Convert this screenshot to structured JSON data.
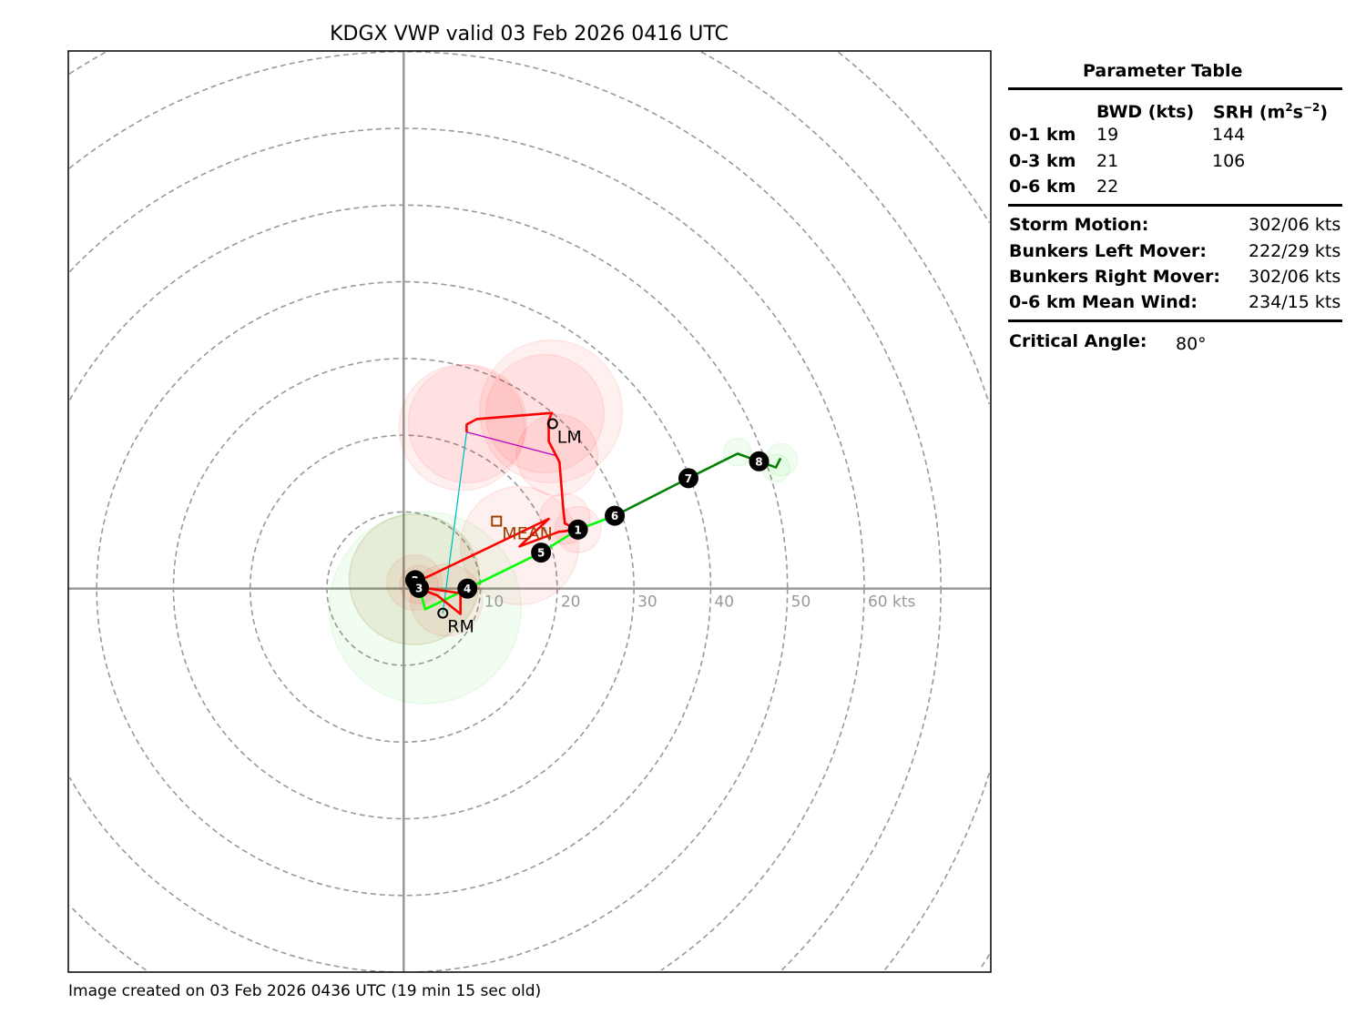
{
  "chart_data": {
    "type": "line",
    "title": "KDGX VWP valid 03 Feb 2026 0416 UTC",
    "footer": "Image created on 03 Feb 2026 0436 UTC (19 min 15 sec old)",
    "xlim": [
      -43.7,
      76.5
    ],
    "ylim": [
      -50,
      70.1
    ],
    "units": "kts",
    "rings": [
      10,
      20,
      30,
      40,
      50,
      60,
      70,
      80,
      90
    ],
    "ring_labels": [
      "10",
      "20",
      "30",
      "40",
      "50",
      "60 kts"
    ],
    "series": [
      {
        "name": "hodograph-low",
        "color": "#00ff00",
        "points": [
          [
            2.0,
            0.1
          ],
          [
            2.4,
            -1.2
          ],
          [
            2.8,
            -2.7
          ],
          [
            8.3,
            0
          ],
          [
            17.9,
            4.7
          ],
          [
            22.7,
            7.7
          ],
          [
            27.5,
            9.5
          ]
        ]
      },
      {
        "name": "hodograph-high",
        "color": "#008000",
        "points": [
          [
            27.5,
            9.5
          ],
          [
            37.1,
            14.4
          ],
          [
            43.5,
            17.6
          ],
          [
            46.3,
            16.6
          ],
          [
            48.5,
            15.8
          ],
          [
            49.1,
            17.0
          ]
        ]
      },
      {
        "name": "trace-red-a",
        "color": "#ff0000",
        "points": [
          [
            2.0,
            0.2
          ],
          [
            7.4,
            -0.6
          ],
          [
            7.4,
            -3.3
          ],
          [
            4.4,
            -0.9
          ],
          [
            2.3,
            -0.1
          ]
        ]
      },
      {
        "name": "trace-red-b",
        "color": "#ff0000",
        "points": [
          [
            2.4,
            1.2
          ],
          [
            18.9,
            9.1
          ],
          [
            15.1,
            5.5
          ],
          [
            20.2,
            7.4
          ],
          [
            22.7,
            7.7
          ],
          [
            21.0,
            8.5
          ],
          [
            20.8,
            10.3
          ],
          [
            20.3,
            16.5
          ],
          [
            18.9,
            19.2
          ],
          [
            18.9,
            21.9
          ],
          [
            19.3,
            22.9
          ],
          [
            9.5,
            22.1
          ],
          [
            8.2,
            21.4
          ],
          [
            8.2,
            20.4
          ]
        ]
      }
    ],
    "height_markers": [
      {
        "label": "1",
        "u": 22.7,
        "v": 7.7
      },
      {
        "label": "2",
        "u": 1.5,
        "v": 1.1
      },
      {
        "label": "3",
        "u": 2.0,
        "v": 0.1
      },
      {
        "label": "4",
        "u": 8.3,
        "v": 0
      },
      {
        "label": "5",
        "u": 17.9,
        "v": 4.7
      },
      {
        "label": "6",
        "u": 27.5,
        "v": 9.5
      },
      {
        "label": "7",
        "u": 37.1,
        "v": 14.4
      },
      {
        "label": "8",
        "u": 46.3,
        "v": 16.6
      }
    ],
    "uncertainty_circles": [
      {
        "u": 8.3,
        "v": 21.5,
        "r": 7.7,
        "c": "red"
      },
      {
        "u": 19.2,
        "v": 23.1,
        "r": 9.3,
        "c": "red"
      },
      {
        "u": 18.4,
        "v": 22.8,
        "r": 7.7,
        "c": "red"
      },
      {
        "u": 7.6,
        "v": 21.0,
        "r": 8.2,
        "c": "red"
      },
      {
        "u": 20.0,
        "v": 17.4,
        "r": 5.3,
        "c": "red"
      },
      {
        "u": 15.1,
        "v": 5.6,
        "r": 7.7,
        "c": "red"
      },
      {
        "u": 22.7,
        "v": 7.7,
        "r": 3.0,
        "c": "red"
      },
      {
        "u": 21.0,
        "v": 9.1,
        "r": 3.3,
        "c": "red"
      },
      {
        "u": 1.4,
        "v": 1.2,
        "r": 8.5,
        "c": "red"
      },
      {
        "u": 1.4,
        "v": 0.8,
        "r": 3.6,
        "c": "red"
      },
      {
        "u": 2.0,
        "v": 0.5,
        "r": 2.5,
        "c": "red"
      },
      {
        "u": 5.6,
        "v": -1.5,
        "r": 4.7,
        "c": "red"
      },
      {
        "u": 2.8,
        "v": -2.5,
        "r": 12.5,
        "c": "green"
      },
      {
        "u": 1.4,
        "v": 1.2,
        "r": 8.5,
        "c": "green"
      },
      {
        "u": 43.5,
        "v": 17.8,
        "r": 1.8,
        "c": "green"
      },
      {
        "u": 49.2,
        "v": 16.8,
        "r": 2.1,
        "c": "green"
      },
      {
        "u": 48.5,
        "v": 15.7,
        "r": 1.8,
        "c": "green"
      }
    ],
    "lm": {
      "label": "LM",
      "u": 19.4,
      "v": 21.5
    },
    "rm": {
      "label": "RM",
      "u": 5.1,
      "v": -3.2
    },
    "mean": {
      "label": "MEAN",
      "u": 12.1,
      "v": 8.8
    },
    "critical_angle_lines": [
      {
        "color": "#00bfbf",
        "from": [
          8.2,
          20.4
        ],
        "to": [
          5.1,
          -3.2
        ]
      },
      {
        "color": "#bf00bf",
        "from": [
          8.2,
          20.4
        ],
        "to": [
          20.0,
          17.3
        ]
      }
    ]
  },
  "table": {
    "title": "Parameter Table",
    "col_bwd": "BWD (kts)",
    "col_srh": "SRH (m",
    "col_srh_sup1": "2",
    "col_srh_s": "s",
    "col_srh_sup2": "−2",
    "col_srh_end": ")",
    "rows": [
      {
        "layer": "0-1 km",
        "bwd": "19",
        "srh": "144"
      },
      {
        "layer": "0-3 km",
        "bwd": "21",
        "srh": "106"
      },
      {
        "layer": "0-6 km",
        "bwd": "22",
        "srh": ""
      }
    ],
    "motion": [
      {
        "label": "Storm Motion:",
        "value": "302/06 kts"
      },
      {
        "label": "Bunkers Left Mover:",
        "value": "222/29 kts"
      },
      {
        "label": "Bunkers Right Mover:",
        "value": "302/06 kts"
      },
      {
        "label": "0-6 km Mean Wind:",
        "value": "234/15 kts"
      }
    ],
    "critical_angle_label": "Critical Angle:",
    "critical_angle_value": "80°"
  }
}
